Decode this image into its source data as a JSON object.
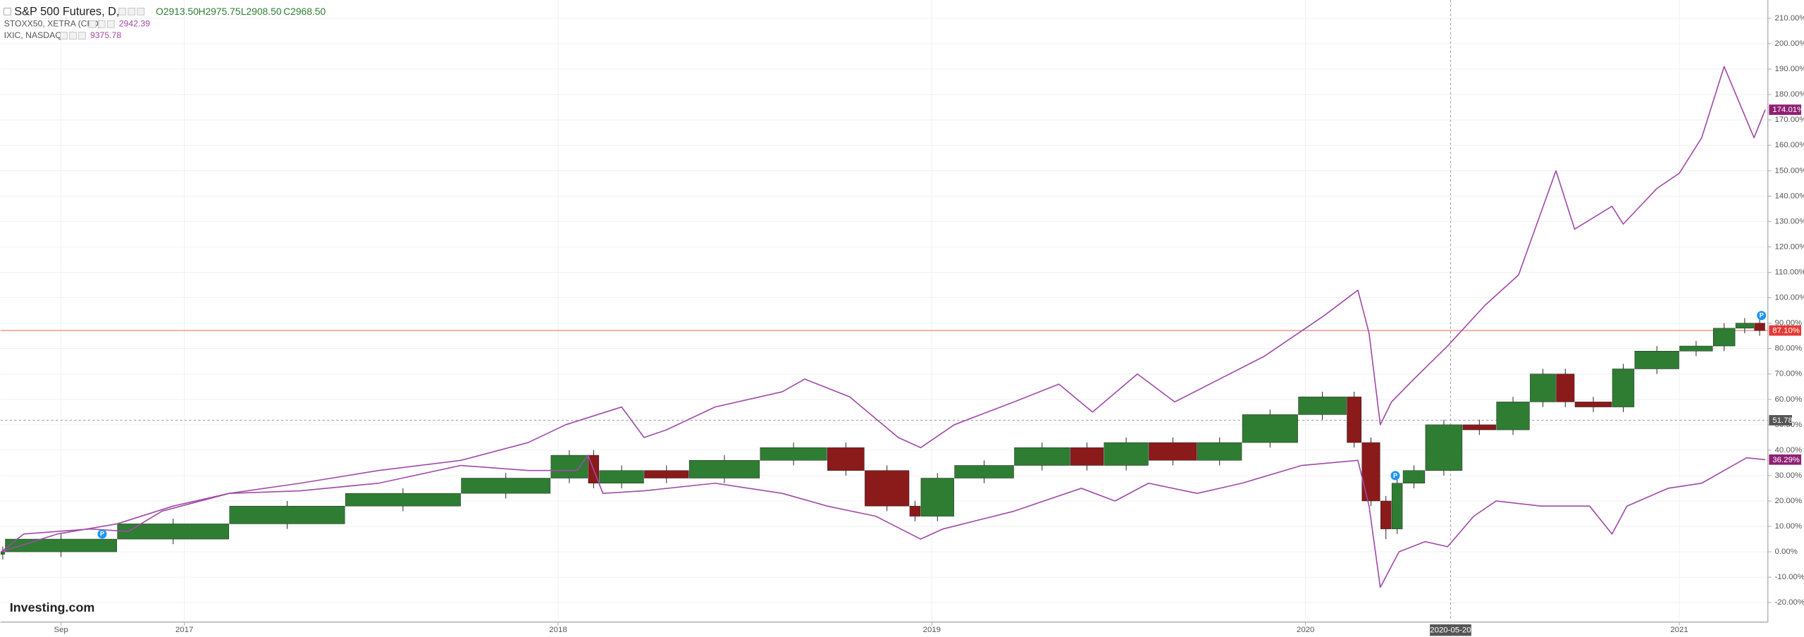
{
  "chart_data": {
    "type": "candlestick",
    "xlim": [
      2016.508,
      2021.237
    ],
    "ylim": [
      -27.2,
      217.2
    ],
    "xticks": [
      {
        "value": 2016.67,
        "label": "Sep"
      },
      2017,
      2018,
      2019,
      2020,
      2021
    ],
    "yticks": [
      {
        "value": -20,
        "label": "-20.00%"
      },
      {
        "value": -10,
        "label": "-10.00%"
      },
      {
        "value": 0,
        "label": "0.00%"
      },
      {
        "value": 10,
        "label": "10.00%"
      },
      {
        "value": 20,
        "label": "20.00%"
      },
      {
        "value": 30,
        "label": "30.00%"
      },
      {
        "value": 40,
        "label": "40.00%"
      },
      {
        "value": 50,
        "label": "50.00%"
      },
      {
        "value": 60,
        "label": "60.00%"
      },
      {
        "value": 70,
        "label": "70.00%"
      },
      {
        "value": 80,
        "label": "80.00%"
      },
      {
        "value": 90,
        "label": "90.00%"
      },
      {
        "value": 100,
        "label": "100.00%"
      },
      {
        "value": 110,
        "label": "110.00%"
      },
      {
        "value": 120,
        "label": "120.00%"
      },
      {
        "value": 130,
        "label": "130.00%"
      },
      {
        "value": 140,
        "label": "140.00%"
      },
      {
        "value": 150,
        "label": "150.00%"
      },
      {
        "value": 160,
        "label": "160.00%"
      },
      {
        "value": 170,
        "label": "170.00%"
      },
      {
        "value": 180,
        "label": "180.00%"
      },
      {
        "value": 190,
        "label": "190.00%"
      },
      {
        "value": 200,
        "label": "200.00%"
      },
      {
        "value": 210,
        "label": "210.00%"
      }
    ],
    "grid": true,
    "series": [
      {
        "name": "S&P 500 Futures, D,",
        "type": "candlestick",
        "up_color": "#2e7d32",
        "down_color": "#8b1a1a",
        "legend_values": [
          "O2913.50",
          "H2975.75",
          "L2908.50",
          "C2968.50"
        ],
        "x": [
          2016.52,
          2016.82,
          2017.12,
          2017.43,
          2017.74,
          2017.98,
          2018.08,
          2018.11,
          2018.23,
          2018.35,
          2018.54,
          2018.72,
          2018.82,
          2018.94,
          2018.97,
          2019.06,
          2019.22,
          2019.37,
          2019.46,
          2019.58,
          2019.71,
          2019.83,
          2019.98,
          2020.11,
          2020.15,
          2020.2,
          2020.23,
          2020.26,
          2020.32,
          2020.42,
          2020.51,
          2020.6,
          2020.67,
          2020.72,
          2020.82,
          2020.88,
          2021.0,
          2021.09,
          2021.15,
          2021.2,
          2021.23
        ],
        "open": [
          -1,
          0,
          5,
          11,
          18,
          23,
          29,
          38,
          27,
          32,
          29,
          36,
          41,
          32,
          18,
          14,
          29,
          34,
          41,
          34,
          43,
          36,
          43,
          54,
          61,
          43,
          20,
          9,
          27,
          32,
          50,
          48,
          59,
          70,
          59,
          57,
          72,
          79,
          81,
          88,
          90
        ],
        "high": [
          2,
          7,
          13,
          20,
          25,
          31,
          40,
          40,
          34,
          34,
          38,
          43,
          43,
          34,
          20,
          31,
          36,
          43,
          43,
          45,
          45,
          45,
          56,
          63,
          63,
          45,
          22,
          29,
          34,
          52,
          52,
          61,
          72,
          72,
          61,
          74,
          81,
          83,
          90,
          92,
          92
        ],
        "low": [
          -3,
          -2,
          3,
          9,
          16,
          21,
          27,
          25,
          25,
          27,
          27,
          34,
          30,
          16,
          12,
          12,
          27,
          32,
          32,
          32,
          34,
          34,
          41,
          52,
          41,
          18,
          5,
          7,
          25,
          30,
          46,
          46,
          57,
          57,
          55,
          55,
          70,
          77,
          79,
          86,
          85
        ],
        "close": [
          0,
          5,
          11,
          18,
          23,
          29,
          38,
          27,
          32,
          29,
          36,
          41,
          32,
          18,
          14,
          29,
          34,
          41,
          34,
          43,
          36,
          43,
          54,
          61,
          43,
          20,
          9,
          27,
          32,
          50,
          48,
          59,
          70,
          59,
          57,
          72,
          79,
          81,
          88,
          90,
          87.1
        ]
      },
      {
        "name": "STOXX50, XETRA (CFD)",
        "type": "line",
        "color": "#a04aa8",
        "legend_values": [
          2942.39
        ],
        "x": [
          2016.51,
          2016.66,
          2016.82,
          2016.97,
          2017.12,
          2017.31,
          2017.52,
          2017.74,
          2017.92,
          2018.05,
          2018.08,
          2018.12,
          2018.23,
          2018.42,
          2018.6,
          2018.72,
          2018.85,
          2018.97,
          2019.03,
          2019.22,
          2019.4,
          2019.49,
          2019.58,
          2019.71,
          2019.83,
          2019.99,
          2020.14,
          2020.17,
          2020.2,
          2020.25,
          2020.32,
          2020.38,
          2020.45,
          2020.51,
          2020.63,
          2020.76,
          2020.82,
          2020.86,
          2020.97,
          2021.06,
          2021.12,
          2021.18,
          2021.23
        ],
        "values": [
          0,
          7,
          11,
          18,
          23,
          24,
          27,
          34,
          32,
          32,
          38,
          23,
          24,
          27,
          23,
          18,
          14,
          5,
          9,
          16,
          25,
          20,
          27,
          23,
          27,
          34,
          36,
          18,
          -14,
          0,
          4,
          2,
          14,
          20,
          18,
          18,
          7,
          18,
          25,
          27,
          32,
          37,
          36.29
        ]
      },
      {
        "name": "IXIC, NASDAQ",
        "type": "line",
        "color": "#a04aa8",
        "legend_values": [
          9375.78
        ],
        "x": [
          2016.51,
          2016.57,
          2016.75,
          2016.85,
          2016.94,
          2017.12,
          2017.31,
          2017.52,
          2017.74,
          2017.92,
          2018.02,
          2018.17,
          2018.23,
          2018.29,
          2018.42,
          2018.6,
          2018.66,
          2018.78,
          2018.91,
          2018.97,
          2019.06,
          2019.22,
          2019.34,
          2019.43,
          2019.55,
          2019.65,
          2019.77,
          2019.89,
          2020.05,
          2020.14,
          2020.17,
          2020.2,
          2020.23,
          2020.29,
          2020.38,
          2020.48,
          2020.57,
          2020.67,
          2020.72,
          2020.82,
          2020.85,
          2020.94,
          2021.0,
          2021.06,
          2021.12,
          2021.2,
          2021.23
        ],
        "values": [
          0,
          7,
          9,
          8,
          16,
          23,
          27,
          32,
          36,
          43,
          50,
          57,
          45,
          48,
          57,
          63,
          68,
          61,
          45,
          41,
          50,
          59,
          66,
          55,
          70,
          59,
          68,
          77,
          93,
          103,
          86,
          50,
          59,
          68,
          81,
          97,
          109,
          150,
          127,
          136,
          129,
          143,
          149,
          163,
          191,
          163,
          174.01
        ]
      }
    ],
    "price_labels": [
      {
        "value": 174.01,
        "label": "174.01%",
        "color": "#8e1f73",
        "line": false
      },
      {
        "value": 87.1,
        "label": "87.10%",
        "color": "#e53935",
        "line": true
      },
      {
        "value": 36.29,
        "label": "36.29%",
        "color": "#8e1f73",
        "line": false
      }
    ],
    "crosshair": {
      "x": {
        "value": 2020.388,
        "label": "2020-05-20"
      },
      "y": {
        "value": 51.78,
        "label": "51.78"
      }
    },
    "markers": [
      {
        "x": 2016.78,
        "y": 7,
        "label": "P"
      },
      {
        "x": 2020.24,
        "y": 30,
        "label": "P"
      },
      {
        "x": 2021.22,
        "y": 93,
        "label": "P"
      }
    ],
    "watermark": "Investing.com"
  }
}
